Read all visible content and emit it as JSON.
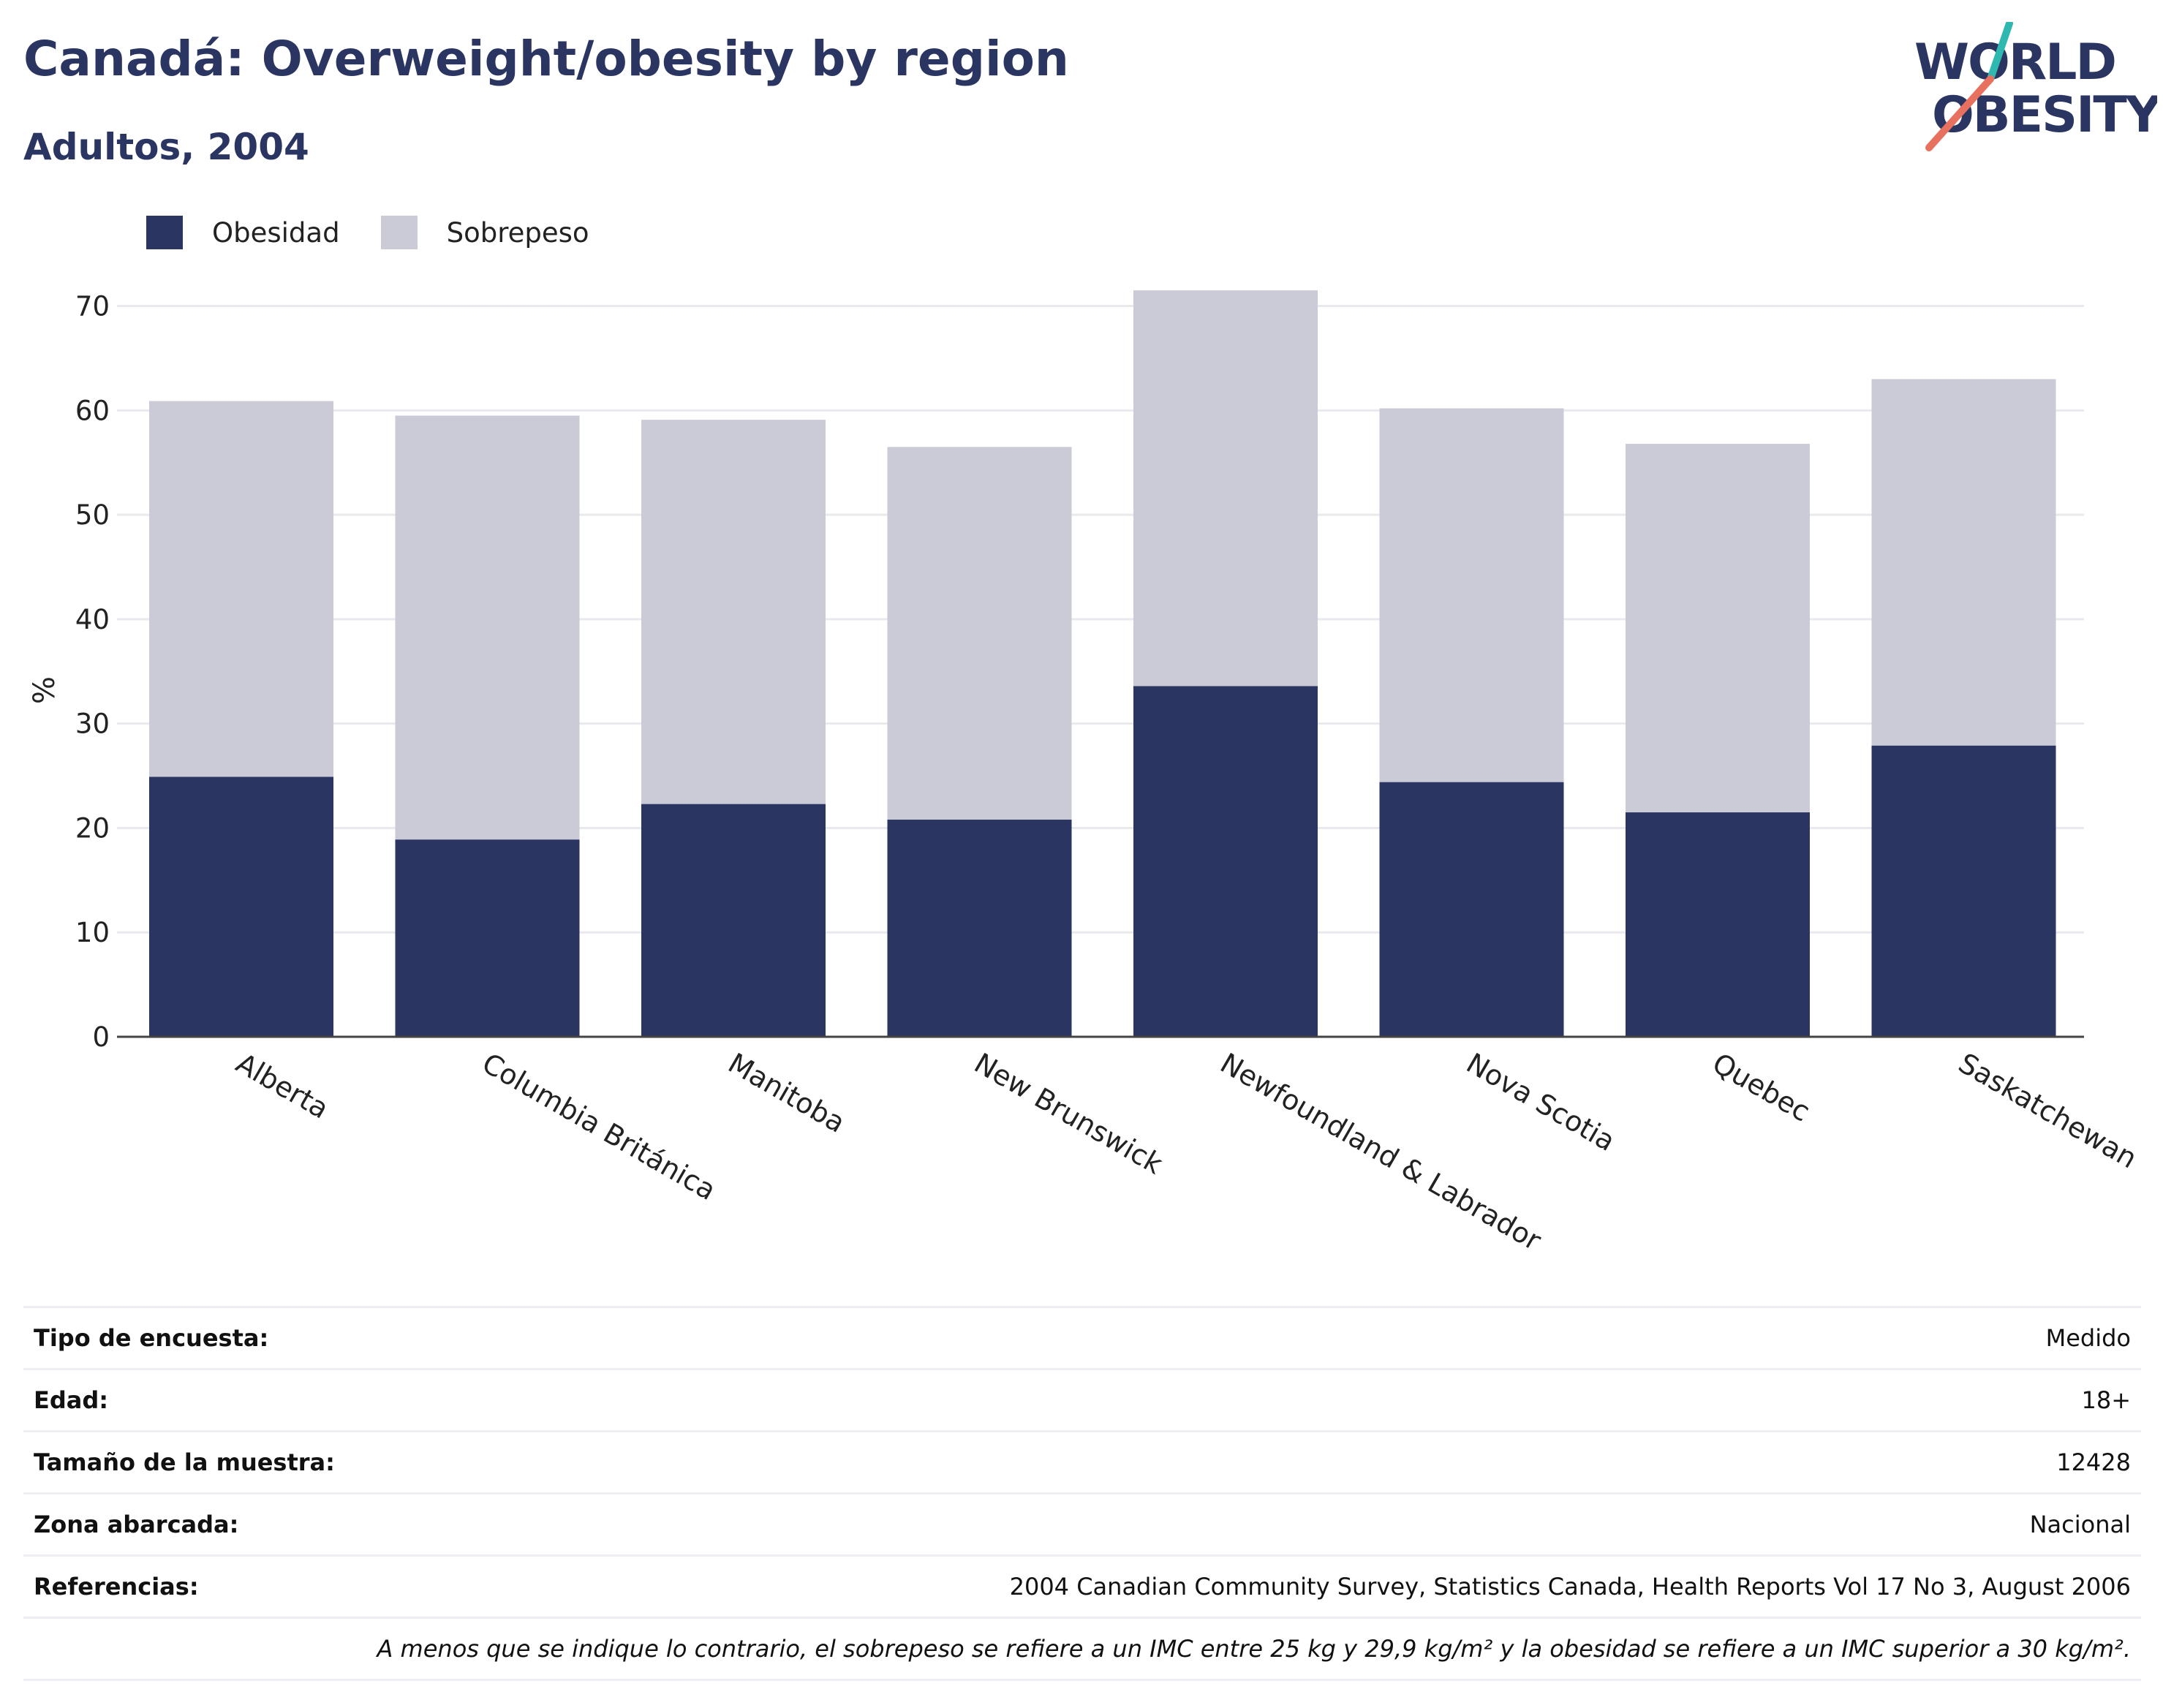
{
  "header": {
    "title": "Canadá: Overweight/obesity by region",
    "subtitle": "Adultos, 2004"
  },
  "logo": {
    "line1": "WORLD",
    "line2": "OBESITY"
  },
  "legend": [
    {
      "label": "Obesidad",
      "color": "#2a3562"
    },
    {
      "label": "Sobrepeso",
      "color": "#cacbd7"
    }
  ],
  "chart_data": {
    "type": "bar",
    "stacked": true,
    "categories": [
      "Alberta",
      "Columbia Británica",
      "Manitoba",
      "New Brunswick",
      "Newfoundland & Labrador",
      "Nova Scotia",
      "Quebec",
      "Saskatchewan"
    ],
    "series": [
      {
        "name": "Obesidad",
        "values": [
          24.9,
          18.9,
          22.3,
          20.8,
          33.6,
          24.4,
          21.5,
          27.9
        ],
        "color": "#2a3562"
      },
      {
        "name": "Sobrepeso",
        "values": [
          36.0,
          40.6,
          36.8,
          35.7,
          37.9,
          35.8,
          35.3,
          35.1
        ],
        "color": "#cacbd7"
      }
    ],
    "ylabel": "%",
    "ylim": [
      0,
      72
    ],
    "yticks": [
      0,
      10,
      20,
      30,
      40,
      50,
      60,
      70
    ],
    "grid": true,
    "legend_position": "top-left"
  },
  "info": [
    {
      "label": "Tipo de encuesta:",
      "value": "Medido"
    },
    {
      "label": "Edad:",
      "value": "18+"
    },
    {
      "label": "Tamaño de la muestra:",
      "value": "12428"
    },
    {
      "label": "Zona abarcada:",
      "value": "Nacional"
    },
    {
      "label": "Referencias:",
      "value": "2004 Canadian Community Survey, Statistics Canada, Health Reports Vol 17 No 3, August 2006"
    }
  ],
  "note": "A menos que se indique lo contrario, el sobrepeso se refiere a un IMC entre 25 kg y 29,9 kg/m² y la obesidad se refiere a un IMC superior a 30 kg/m²."
}
